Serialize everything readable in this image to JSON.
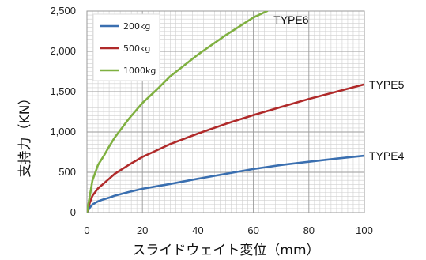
{
  "chart_data": {
    "type": "line",
    "title": "",
    "xlabel": "スライドウェイト変位（mm）",
    "ylabel": "支持力（KN）",
    "xlim": [
      0,
      100
    ],
    "ylim": [
      0,
      2500
    ],
    "x_ticks": [
      0,
      20,
      40,
      60,
      80,
      100
    ],
    "x_tick_labels": [
      "0",
      "20",
      "40",
      "60",
      "80",
      "100"
    ],
    "y_ticks": [
      0,
      500,
      1000,
      1500,
      2000,
      2500
    ],
    "y_tick_labels": [
      "0",
      "500",
      "1,000",
      "1,500",
      "2,000",
      "2,500"
    ],
    "grid": true,
    "legend_position": "top-left",
    "series": [
      {
        "name": "200kg",
        "end_label": "TYPE4",
        "color": "#3a6fb0",
        "points": [
          [
            0,
            0
          ],
          [
            1,
            60
          ],
          [
            2,
            100
          ],
          [
            4,
            140
          ],
          [
            6,
            165
          ],
          [
            8,
            185
          ],
          [
            10,
            210
          ],
          [
            15,
            255
          ],
          [
            20,
            295
          ],
          [
            25,
            325
          ],
          [
            30,
            355
          ],
          [
            40,
            420
          ],
          [
            50,
            480
          ],
          [
            60,
            540
          ],
          [
            70,
            590
          ],
          [
            80,
            630
          ],
          [
            90,
            670
          ],
          [
            100,
            705
          ]
        ]
      },
      {
        "name": "500kg",
        "end_label": "TYPE5",
        "color": "#b02a2a",
        "points": [
          [
            0,
            0
          ],
          [
            1,
            120
          ],
          [
            2,
            210
          ],
          [
            4,
            300
          ],
          [
            6,
            360
          ],
          [
            8,
            420
          ],
          [
            10,
            480
          ],
          [
            15,
            590
          ],
          [
            20,
            690
          ],
          [
            25,
            770
          ],
          [
            30,
            850
          ],
          [
            40,
            980
          ],
          [
            50,
            1100
          ],
          [
            60,
            1210
          ],
          [
            70,
            1310
          ],
          [
            80,
            1410
          ],
          [
            90,
            1500
          ],
          [
            100,
            1590
          ]
        ]
      },
      {
        "name": "1000kg",
        "end_label": "TYPE6",
        "color": "#7fb040",
        "points": [
          [
            0,
            0
          ],
          [
            1,
            200
          ],
          [
            2,
            400
          ],
          [
            4,
            590
          ],
          [
            6,
            700
          ],
          [
            8,
            820
          ],
          [
            10,
            930
          ],
          [
            15,
            1160
          ],
          [
            20,
            1360
          ],
          [
            25,
            1520
          ],
          [
            30,
            1690
          ],
          [
            40,
            1960
          ],
          [
            50,
            2200
          ],
          [
            60,
            2420
          ],
          [
            65,
            2500
          ]
        ]
      }
    ]
  }
}
